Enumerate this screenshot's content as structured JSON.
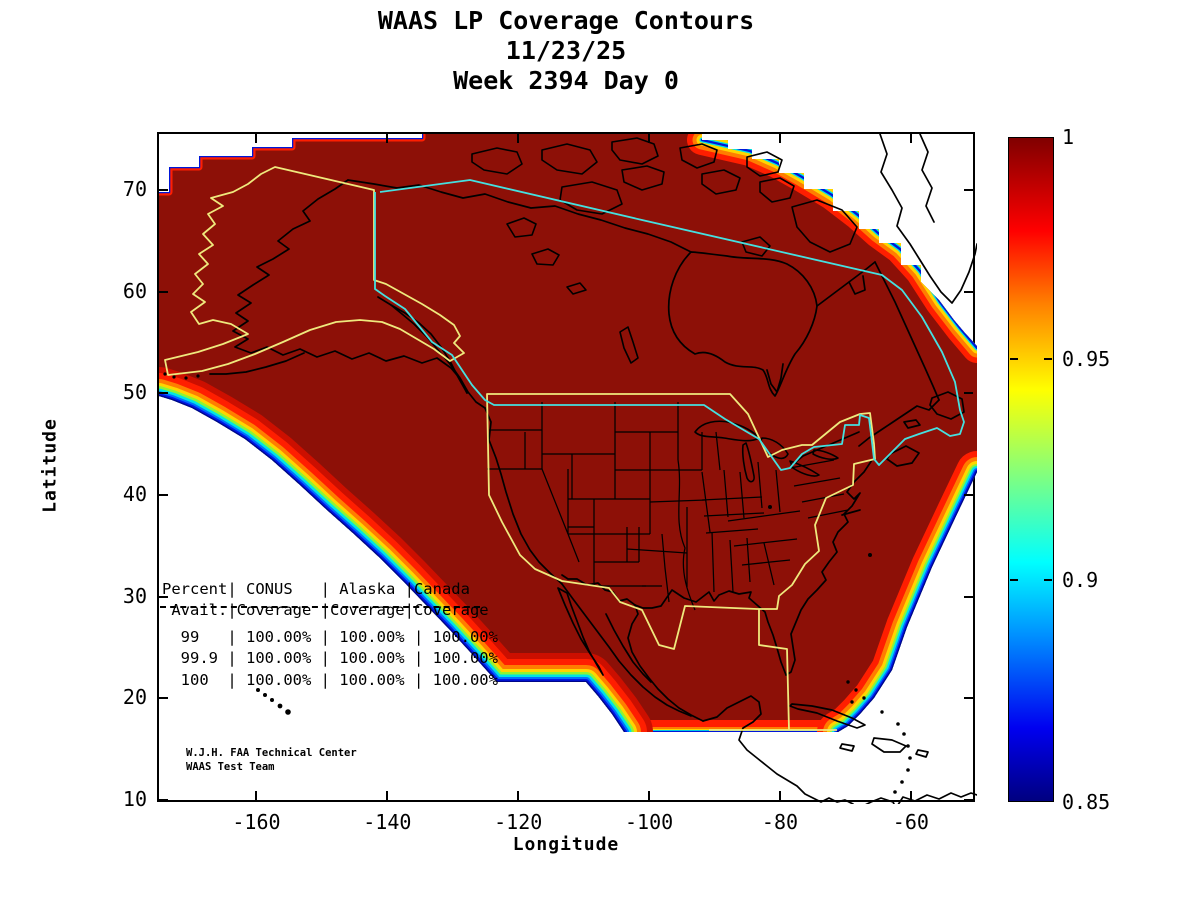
{
  "figure": {
    "title": "WAAS LP Coverage Contours",
    "subtitle_date": "11/23/25",
    "subtitle_week": "Week 2394 Day 0"
  },
  "axes": {
    "xlabel": "Longitude",
    "ylabel": "Latitude"
  },
  "stats_panel": {
    "header_lines": [
      "Percent| CONUS   | Alaska |Canada",
      " Avail.|Coverage |Coverage|Coverage"
    ],
    "row_lines": [
      "  99   | 100.00% | 100.00% | 100.00%",
      "  99.9 | 100.00% | 100.00% | 100.00%",
      "  100  | 100.00% | 100.00% | 100.00%"
    ]
  },
  "attribution": {
    "lines": [
      "W.J.H. FAA Technical Center",
      "WAAS Test Team"
    ]
  },
  "chart_data": {
    "type": "heatmap",
    "subtype": "filled_contour_coverage_map",
    "title": "WAAS LP Coverage Contours",
    "date": "11/23/25",
    "gps_week": 2394,
    "gps_day": 0,
    "xlabel": "Longitude",
    "ylabel": "Latitude",
    "xlim": [
      -175,
      -50
    ],
    "ylim": [
      10,
      75.7
    ],
    "x_ticks": [
      -160,
      -140,
      -120,
      -100,
      -80,
      -60
    ],
    "y_ticks": [
      70,
      60,
      50,
      40,
      30,
      20,
      10
    ],
    "grid": false,
    "legend_position": "right-colorbar",
    "colorbar": {
      "colormap": "jet",
      "min": 0.85,
      "max": 1.0,
      "ticks": [
        1,
        0.95,
        0.9,
        0.85
      ],
      "tick_labels": [
        "1",
        "0.95",
        "0.9",
        "0.85"
      ]
    },
    "coverage_table": {
      "columns": [
        "Percent Avail.",
        "CONUS Coverage",
        "Alaska Coverage",
        "Canada Coverage"
      ],
      "rows": [
        [
          "99",
          "100.00%",
          "100.00%",
          "100.00%"
        ],
        [
          "99.9",
          "100.00%",
          "100.00%",
          "100.00%"
        ],
        [
          "100",
          "100.00%",
          "100.00%",
          "100.00%"
        ]
      ]
    },
    "outlined_regions": [
      "Alaska (yellow)",
      "CONUS (yellow)",
      "Canada (cyan)"
    ],
    "interior_value": 1.0,
    "fringe_value_range": [
      0.85,
      1.0
    ],
    "colors": {
      "interior_fill": "#8d1007",
      "region_outline_yellow": "#efe97d",
      "region_outline_cyan": "#45e0e0",
      "coastline": "#000000",
      "background": "#ffffff"
    }
  }
}
